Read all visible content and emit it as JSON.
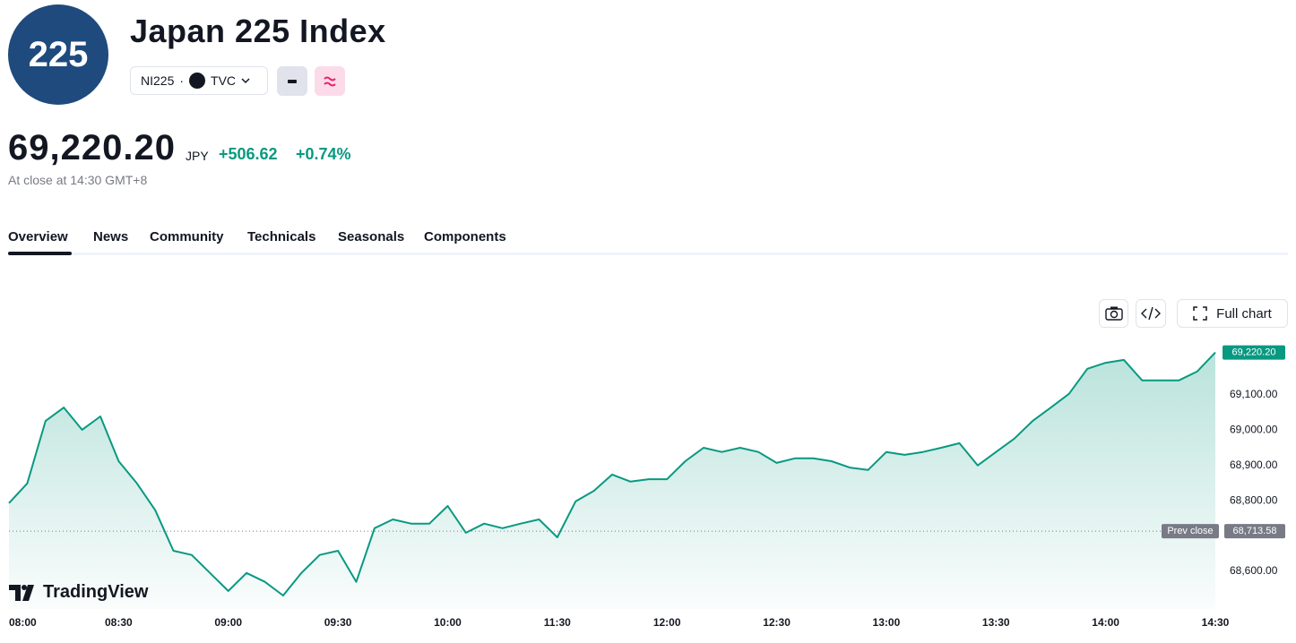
{
  "header": {
    "logo": "225",
    "title": "Japan 225 Index",
    "symbol": "NI225",
    "exchange": "TVC",
    "price": "69,220.20",
    "currency": "JPY",
    "change": "+506.62",
    "change_pct": "+0.74%",
    "status": "At close at 14:30 GMT+8"
  },
  "tabs": [
    "Overview",
    "News",
    "Community",
    "Technicals",
    "Seasonals",
    "Components"
  ],
  "toolbar": {
    "full_chart": "Full chart"
  },
  "brand": "TradingView",
  "chart_data": {
    "type": "line",
    "color": "#089981",
    "grid": false,
    "categories": [
      "08:00",
      null,
      null,
      null,
      null,
      null,
      "08:30",
      null,
      null,
      null,
      null,
      null,
      "09:00",
      null,
      null,
      null,
      null,
      null,
      "09:30",
      null,
      null,
      null,
      null,
      null,
      "10:00",
      null,
      null,
      null,
      null,
      null,
      "11:30",
      null,
      null,
      null,
      null,
      null,
      "12:00",
      null,
      null,
      null,
      null,
      null,
      "12:30",
      null,
      null,
      null,
      null,
      null,
      "13:00",
      null,
      null,
      null,
      null,
      null,
      "13:30",
      null,
      null,
      null,
      null,
      null,
      "14:00",
      null,
      null,
      null,
      null,
      null,
      "14:30"
    ],
    "values": [
      68793,
      68849,
      69026,
      69064,
      69001,
      69039,
      68912,
      68849,
      68773,
      68658,
      68646,
      68595,
      68544,
      68595,
      68570,
      68531,
      68595,
      68646,
      68658,
      68570,
      68722,
      68747,
      68735,
      68735,
      68785,
      68709,
      68735,
      68722,
      68735,
      68747,
      68696,
      68798,
      68828,
      68874,
      68854,
      68861,
      68861,
      68912,
      68950,
      68938,
      68950,
      68938,
      68907,
      68920,
      68920,
      68912,
      68894,
      68887,
      68938,
      68930,
      68938,
      68950,
      68963,
      68900,
      68938,
      68976,
      69026,
      69064,
      69103,
      69174,
      69191,
      69199,
      69141,
      69141,
      69141,
      69166,
      69220.2
    ],
    "last_value_label": "69,220.20",
    "prev_close": {
      "label": "Prev close",
      "value": 68713.58,
      "value_label": "68,713.58"
    },
    "ylim": [
      68493,
      69242
    ],
    "yticks": [
      {
        "value": 68600,
        "label": "68,600.00"
      },
      {
        "value": 68800,
        "label": "68,800.00"
      },
      {
        "value": 68900,
        "label": "68,900.00"
      },
      {
        "value": 69000,
        "label": "69,000.00"
      },
      {
        "value": 69100,
        "label": "69,100.00"
      }
    ]
  }
}
